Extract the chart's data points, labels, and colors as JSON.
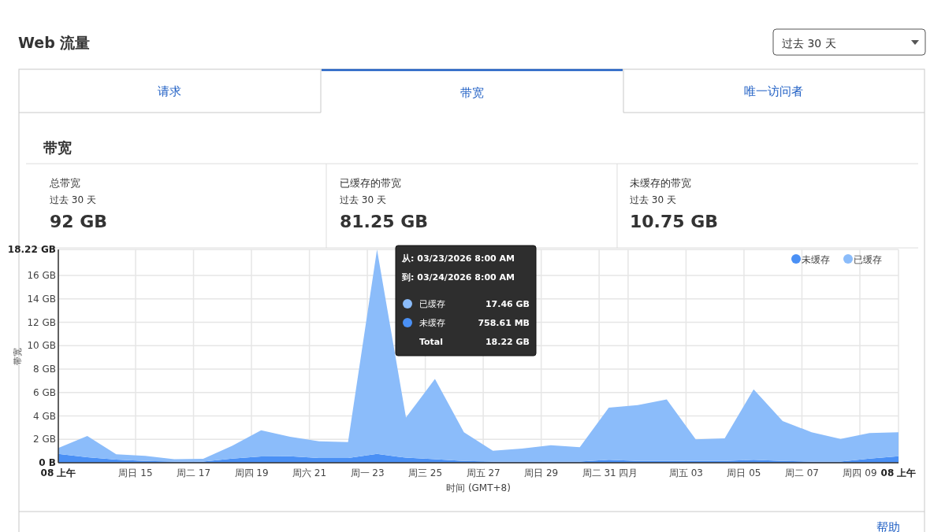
{
  "chart_data": {
    "type": "area",
    "stacked": true,
    "title": "Web 流量",
    "subtitle": "带宽",
    "xlabel": "时间 (GMT+8)",
    "ylabel": "带宽",
    "legend": "top right",
    "grid": true,
    "xlim": [
      "2026-03-12T08:00",
      "2026-04-10T08:00"
    ],
    "xticks": [
      {
        "value": "2026-03-12T08:00",
        "label": "08 上午"
      },
      {
        "value": "2026-03-15",
        "label": "周日 15"
      },
      {
        "value": "2026-03-17",
        "label": "周二 17"
      },
      {
        "value": "2026-03-19",
        "label": "周四 19"
      },
      {
        "value": "2026-03-21",
        "label": "周六 21"
      },
      {
        "value": "2026-03-23",
        "label": "周一 23"
      },
      {
        "value": "2026-03-25",
        "label": "周三 25"
      },
      {
        "value": "2026-03-27",
        "label": "周五 27"
      },
      {
        "value": "2026-03-29",
        "label": "周日 29"
      },
      {
        "value": "2026-03-31",
        "label": "周二 31"
      },
      {
        "value": "2026-04-01",
        "label": "四月"
      },
      {
        "value": "2026-04-03",
        "label": "周五 03"
      },
      {
        "value": "2026-04-05",
        "label": "周日 05"
      },
      {
        "value": "2026-04-07",
        "label": "周二 07"
      },
      {
        "value": "2026-04-09",
        "label": "周四 09"
      },
      {
        "value": "2026-04-10T08:00",
        "label": "08 上午"
      }
    ],
    "ylim": [
      0,
      18.22
    ],
    "yticks": [
      {
        "value": 0,
        "label": "0 B"
      },
      {
        "value": 2,
        "label": "2 GB"
      },
      {
        "value": 4,
        "label": "4 GB"
      },
      {
        "value": 6,
        "label": "6 GB"
      },
      {
        "value": 8,
        "label": "8 GB"
      },
      {
        "value": 10,
        "label": "10 GB"
      },
      {
        "value": 12,
        "label": "12 GB"
      },
      {
        "value": 14,
        "label": "14 GB"
      },
      {
        "value": 16,
        "label": "16 GB"
      },
      {
        "value": 18.22,
        "label": "18.22 GB"
      }
    ],
    "x": [
      "2026-03-12T08:00",
      "2026-03-13T08:00",
      "2026-03-14T08:00",
      "2026-03-15T08:00",
      "2026-03-16T08:00",
      "2026-03-17T08:00",
      "2026-03-18T08:00",
      "2026-03-19T08:00",
      "2026-03-20T08:00",
      "2026-03-21T08:00",
      "2026-03-22T08:00",
      "2026-03-23T08:00",
      "2026-03-24T08:00",
      "2026-03-25T08:00",
      "2026-03-26T08:00",
      "2026-03-27T08:00",
      "2026-03-28T08:00",
      "2026-03-29T08:00",
      "2026-03-30T08:00",
      "2026-03-31T08:00",
      "2026-04-01T08:00",
      "2026-04-02T08:00",
      "2026-04-03T08:00",
      "2026-04-04T08:00",
      "2026-04-05T08:00",
      "2026-04-06T08:00",
      "2026-04-07T08:00",
      "2026-04-08T08:00",
      "2026-04-09T08:00",
      "2026-04-10T08:00"
    ],
    "series": [
      {
        "name": "未缓存",
        "color": "#4a90f5",
        "values": [
          0.76,
          0.47,
          0.27,
          0.15,
          0.1,
          0.1,
          0.35,
          0.54,
          0.55,
          0.4,
          0.4,
          0.76,
          0.43,
          0.3,
          0.15,
          0.1,
          0.1,
          0.1,
          0.1,
          0.25,
          0.15,
          0.15,
          0.15,
          0.15,
          0.25,
          0.15,
          0.1,
          0.1,
          0.35,
          0.55
        ]
      },
      {
        "name": "已缓存",
        "color": "#8bbcfa",
        "values": [
          0.5,
          1.82,
          0.45,
          0.43,
          0.21,
          0.24,
          1.09,
          2.24,
          1.67,
          1.44,
          1.37,
          17.46,
          3.43,
          6.86,
          2.46,
          0.93,
          1.11,
          1.4,
          1.23,
          4.45,
          4.77,
          5.26,
          1.85,
          1.94,
          6.02,
          3.42,
          2.51,
          1.94,
          2.19,
          2.06
        ]
      }
    ],
    "annotations": [
      "过去 30 天",
      "请求",
      "带宽",
      "唯一访问者",
      "总带宽",
      "过去 30 天",
      "92 GB",
      "已缓存的带宽",
      "过去 30 天",
      "81.25 GB",
      "未缓存的带宽",
      "过去 30 天",
      "10.75 GB",
      "从: 03/23/2026 8:00 AM",
      "到: 03/24/2026 8:00 AM",
      "已缓存",
      "17.46 GB",
      "未缓存",
      "758.61 MB",
      "Total",
      "18.22 GB",
      "帮助"
    ]
  }
}
